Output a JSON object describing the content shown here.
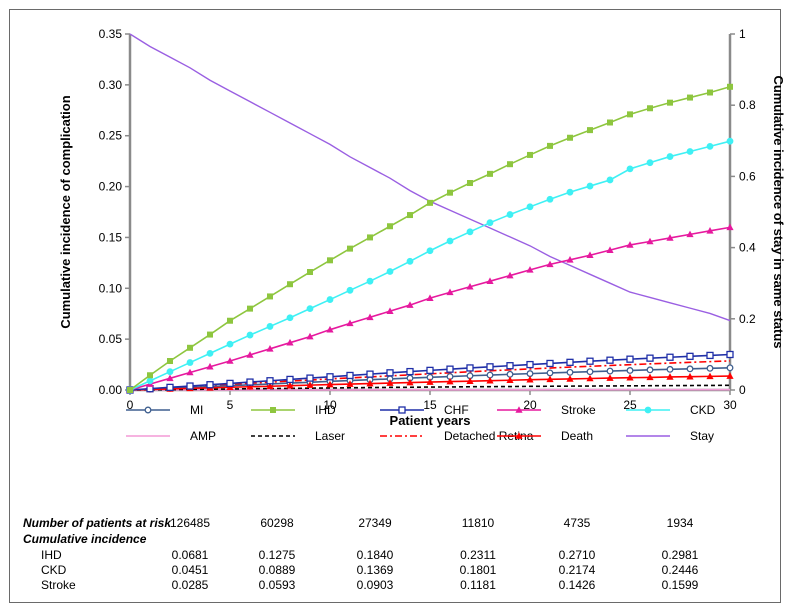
{
  "chart_data": {
    "type": "line",
    "xlabel": "Patient years",
    "ylabel_left": "Cumulative  incidence of complication",
    "ylabel_right": "Cumulative incidence of stay in same status",
    "xlim": [
      0,
      30
    ],
    "ylim_left": [
      0,
      0.35
    ],
    "ylim_right": [
      0,
      1
    ],
    "x_ticks": [
      "0",
      "5",
      "10",
      "15",
      "20",
      "25",
      "30"
    ],
    "y_left_ticks": [
      "0.00",
      "0.05",
      "0.10",
      "0.15",
      "0.20",
      "0.25",
      "0.30",
      "0.35"
    ],
    "y_right_ticks": [
      "0",
      "0.2",
      "0.4",
      "0.6",
      "0.8",
      "1"
    ],
    "grid": false,
    "legend_position": "bottom",
    "x": [
      0,
      1,
      2,
      3,
      4,
      5,
      6,
      7,
      8,
      9,
      10,
      11,
      12,
      13,
      14,
      15,
      16,
      17,
      18,
      19,
      20,
      21,
      22,
      23,
      24,
      25,
      26,
      27,
      28,
      29,
      30
    ],
    "series": [
      {
        "name": "MI",
        "axis": "left",
        "color": "#3f5f8f",
        "marker": "circle-open",
        "values": [
          0,
          0.0008,
          0.0017,
          0.0025,
          0.0034,
          0.0042,
          0.0051,
          0.0059,
          0.0068,
          0.0076,
          0.0085,
          0.0093,
          0.0101,
          0.0109,
          0.0117,
          0.0125,
          0.0132,
          0.014,
          0.0147,
          0.0154,
          0.0161,
          0.0168,
          0.0174,
          0.018,
          0.0186,
          0.0192,
          0.0198,
          0.0203,
          0.0208,
          0.0213,
          0.0218
        ]
      },
      {
        "name": "IHD",
        "axis": "left",
        "color": "#8ec63f",
        "marker": "square-filled",
        "values": [
          0,
          0.0145,
          0.0285,
          0.0415,
          0.0545,
          0.0681,
          0.08,
          0.092,
          0.104,
          0.116,
          0.1275,
          0.139,
          0.15,
          0.161,
          0.172,
          0.184,
          0.194,
          0.2035,
          0.2125,
          0.222,
          0.2311,
          0.24,
          0.248,
          0.2555,
          0.263,
          0.271,
          0.277,
          0.2825,
          0.2875,
          0.2925,
          0.2981
        ]
      },
      {
        "name": "CHF",
        "axis": "left",
        "color": "#1f2fa8",
        "marker": "square-open",
        "values": [
          0,
          0.0013,
          0.0026,
          0.0039,
          0.0052,
          0.0065,
          0.0078,
          0.0091,
          0.0104,
          0.0117,
          0.013,
          0.0143,
          0.0156,
          0.0169,
          0.0181,
          0.0193,
          0.0205,
          0.0217,
          0.0228,
          0.0239,
          0.025,
          0.0261,
          0.0272,
          0.0283,
          0.0293,
          0.0303,
          0.0313,
          0.0322,
          0.0331,
          0.034,
          0.0349
        ]
      },
      {
        "name": "Stroke",
        "axis": "left",
        "color": "#e6199e",
        "marker": "triangle-filled",
        "values": [
          0,
          0.0058,
          0.0115,
          0.0172,
          0.0229,
          0.0285,
          0.0345,
          0.0405,
          0.0465,
          0.0525,
          0.0593,
          0.0655,
          0.0715,
          0.0775,
          0.0835,
          0.0903,
          0.096,
          0.1015,
          0.107,
          0.1125,
          0.1181,
          0.1235,
          0.128,
          0.1325,
          0.1375,
          0.1426,
          0.146,
          0.1495,
          0.153,
          0.1565,
          0.1599
        ]
      },
      {
        "name": "CKD",
        "axis": "left",
        "color": "#3ff0f4",
        "marker": "circle-filled",
        "values": [
          0,
          0.009,
          0.018,
          0.027,
          0.036,
          0.0451,
          0.054,
          0.0625,
          0.071,
          0.08,
          0.0889,
          0.098,
          0.107,
          0.1165,
          0.1265,
          0.1369,
          0.1465,
          0.1555,
          0.1645,
          0.1725,
          0.1801,
          0.1875,
          0.1945,
          0.2005,
          0.2065,
          0.2174,
          0.2235,
          0.2295,
          0.2345,
          0.2395,
          0.2446
        ]
      },
      {
        "name": "AMP",
        "axis": "left",
        "color": "#f39ad6",
        "marker": "none",
        "dash": "solid",
        "values": [
          0,
          0,
          0,
          0,
          0.0001,
          0.0001,
          0.0001,
          0.0001,
          0.0001,
          0.0001,
          0.0001,
          0.0001,
          0.0002,
          0.0002,
          0.0002,
          0.0002,
          0.0002,
          0.0002,
          0.0002,
          0.0002,
          0.0002,
          0.0003,
          0.0003,
          0.0003,
          0.0003,
          0.0003,
          0.0003,
          0.0003,
          0.0003,
          0.0003,
          0.0003
        ]
      },
      {
        "name": "Laser",
        "axis": "left",
        "color": "#000000",
        "marker": "none",
        "dash": "dashed",
        "values": [
          0,
          0.0002,
          0.0004,
          0.0006,
          0.0008,
          0.001,
          0.0012,
          0.0014,
          0.0016,
          0.0018,
          0.002,
          0.0022,
          0.0024,
          0.0026,
          0.0027,
          0.0029,
          0.003,
          0.0032,
          0.0033,
          0.0034,
          0.0036,
          0.0037,
          0.0038,
          0.0039,
          0.004,
          0.0041,
          0.0042,
          0.0043,
          0.0044,
          0.0045,
          0.0046
        ]
      },
      {
        "name": "Detached Retina",
        "axis": "left",
        "color": "#ff0000",
        "marker": "none",
        "dash": "dashdot",
        "values": [
          0,
          0.0011,
          0.0022,
          0.0033,
          0.0044,
          0.0055,
          0.0066,
          0.0077,
          0.0088,
          0.0098,
          0.0109,
          0.0119,
          0.0129,
          0.0139,
          0.0149,
          0.0159,
          0.0169,
          0.0179,
          0.0189,
          0.0198,
          0.0207,
          0.0216,
          0.0225,
          0.0233,
          0.0241,
          0.0249,
          0.0257,
          0.0265,
          0.0272,
          0.0279,
          0.0286
        ]
      },
      {
        "name": "Death",
        "axis": "left",
        "color": "#ff0000",
        "marker": "triangle-filled",
        "values": [
          0,
          0.0005,
          0.001,
          0.0016,
          0.0021,
          0.0027,
          0.0032,
          0.0037,
          0.0042,
          0.0048,
          0.0053,
          0.0058,
          0.0063,
          0.0068,
          0.0073,
          0.0078,
          0.0083,
          0.0087,
          0.0092,
          0.0096,
          0.0101,
          0.0105,
          0.0109,
          0.0113,
          0.0117,
          0.0121,
          0.0124,
          0.0128,
          0.0131,
          0.0134,
          0.0137
        ]
      },
      {
        "name": "Stay",
        "axis": "right",
        "color": "#9a5fe2",
        "marker": "none",
        "dash": "solid",
        "values": [
          1,
          0.965,
          0.935,
          0.905,
          0.87,
          0.84,
          0.81,
          0.78,
          0.75,
          0.72,
          0.69,
          0.655,
          0.625,
          0.595,
          0.56,
          0.53,
          0.505,
          0.48,
          0.455,
          0.43,
          0.405,
          0.375,
          0.35,
          0.325,
          0.3,
          0.275,
          0.26,
          0.245,
          0.23,
          0.215,
          0.195
        ]
      }
    ]
  },
  "risk_table": {
    "patients_label": "Number of patients at risk",
    "patients_values": [
      "126485",
      "60298",
      "27349",
      "11810",
      "4735",
      "1934"
    ],
    "cumulative_label": "Cumulative incidence",
    "rows": [
      {
        "label": "IHD",
        "values": [
          "0.0681",
          "0.1275",
          "0.1840",
          "0.2311",
          "0.2710",
          "0.2981"
        ]
      },
      {
        "label": "CKD",
        "values": [
          "0.0451",
          "0.0889",
          "0.1369",
          "0.1801",
          "0.2174",
          "0.2446"
        ]
      },
      {
        "label": "Stroke",
        "values": [
          "0.0285",
          "0.0593",
          "0.0903",
          "0.1181",
          "0.1426",
          "0.1599"
        ]
      }
    ]
  }
}
